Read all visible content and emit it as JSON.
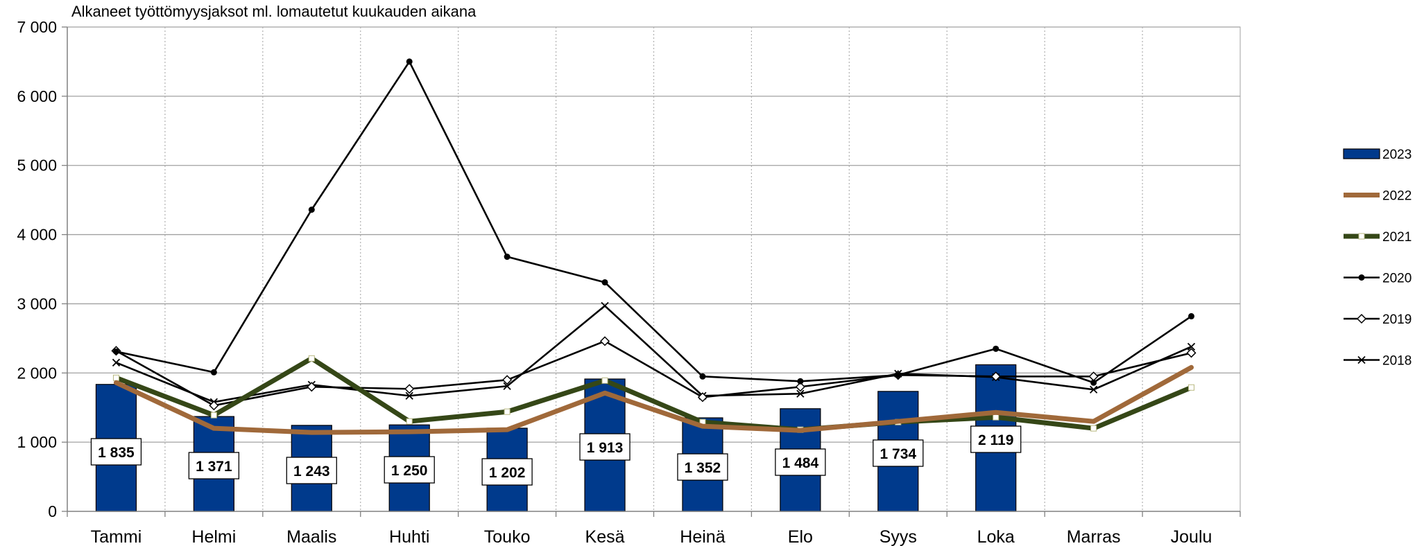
{
  "chart_data": {
    "type": "bar",
    "title": "Alkaneet työttömyysjaksot ml. lomautetut kuukauden aikana",
    "xlabel": "",
    "ylabel": "",
    "ylim": [
      0,
      7000
    ],
    "yticks": [
      0,
      1000,
      2000,
      3000,
      4000,
      5000,
      6000,
      7000
    ],
    "ytick_labels": [
      "0",
      "1 000",
      "2 000",
      "3 000",
      "4 000",
      "5 000",
      "6 000",
      "7 000"
    ],
    "grid": true,
    "legend_position": "right",
    "categories": [
      "Tammi",
      "Helmi",
      "Maalis",
      "Huhti",
      "Touko",
      "Kesä",
      "Heinä",
      "Elo",
      "Syys",
      "Loka",
      "Marras",
      "Joulu"
    ],
    "bars": {
      "name": "2023",
      "color": "#003A8C",
      "values": [
        1835,
        1371,
        1243,
        1250,
        1202,
        1913,
        1352,
        1484,
        1734,
        2119,
        null,
        null
      ],
      "labels": [
        "1 835",
        "1 371",
        "1 243",
        "1 250",
        "1 202",
        "1 913",
        "1 352",
        "1 484",
        "1 734",
        "2 119",
        "",
        ""
      ]
    },
    "series": [
      {
        "name": "2022",
        "color": "#A0693A",
        "marker": "none",
        "values": [
          1860,
          1200,
          1140,
          1150,
          1180,
          1710,
          1230,
          1170,
          1300,
          1430,
          1300,
          2080
        ]
      },
      {
        "name": "2021",
        "color": "#354717",
        "marker": "square",
        "values": [
          1930,
          1390,
          2210,
          1300,
          1440,
          1890,
          1290,
          1180,
          1290,
          1360,
          1200,
          1790
        ]
      },
      {
        "name": "2020",
        "color": "#000000",
        "marker": "dot",
        "values": [
          2310,
          2010,
          4360,
          6500,
          3680,
          3310,
          1950,
          1880,
          1970,
          2350,
          1860,
          2820
        ]
      },
      {
        "name": "2019",
        "color": "#000000",
        "marker": "diamond",
        "values": [
          2320,
          1530,
          1800,
          1770,
          1900,
          2460,
          1650,
          1800,
          1970,
          1950,
          1950,
          2290
        ]
      },
      {
        "name": "2018",
        "color": "#000000",
        "marker": "x",
        "values": [
          2150,
          1580,
          1830,
          1670,
          1810,
          2970,
          1670,
          1700,
          1990,
          1940,
          1760,
          2380
        ]
      }
    ]
  }
}
